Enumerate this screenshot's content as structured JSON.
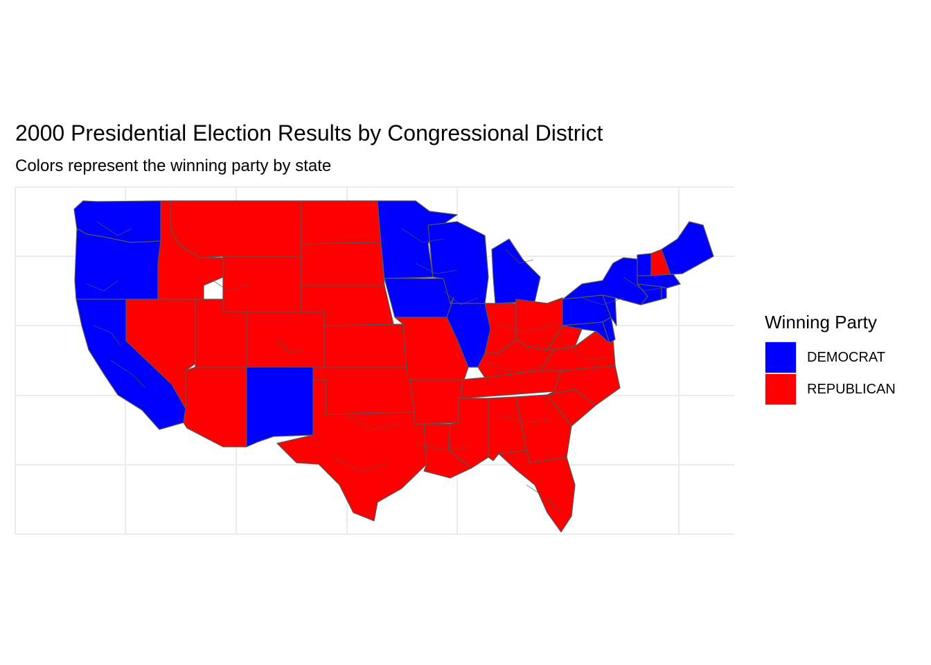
{
  "title": "2000 Presidential Election Results by Congressional District",
  "subtitle": "Colors represent the winning party by state",
  "legend": {
    "title": "Winning Party",
    "items": [
      {
        "label": "DEMOCRAT",
        "color": "#0000FF"
      },
      {
        "label": "REPUBLICAN",
        "color": "#FF0000"
      }
    ]
  },
  "colors": {
    "democrat": "#0000FF",
    "republican": "#FF0000",
    "border": "#555555",
    "grid": "#EBEBEB",
    "background": "#FFFFFF"
  },
  "states": [
    {
      "name": "Washington",
      "party": "DEMOCRAT"
    },
    {
      "name": "Oregon",
      "party": "DEMOCRAT"
    },
    {
      "name": "California",
      "party": "DEMOCRAT"
    },
    {
      "name": "Nevada",
      "party": "REPUBLICAN"
    },
    {
      "name": "Idaho",
      "party": "REPUBLICAN"
    },
    {
      "name": "Montana",
      "party": "REPUBLICAN"
    },
    {
      "name": "Wyoming",
      "party": "REPUBLICAN"
    },
    {
      "name": "Utah",
      "party": "REPUBLICAN"
    },
    {
      "name": "Arizona",
      "party": "REPUBLICAN"
    },
    {
      "name": "Colorado",
      "party": "REPUBLICAN"
    },
    {
      "name": "New Mexico",
      "party": "DEMOCRAT"
    },
    {
      "name": "North Dakota",
      "party": "REPUBLICAN"
    },
    {
      "name": "South Dakota",
      "party": "REPUBLICAN"
    },
    {
      "name": "Nebraska",
      "party": "REPUBLICAN"
    },
    {
      "name": "Kansas",
      "party": "REPUBLICAN"
    },
    {
      "name": "Oklahoma",
      "party": "REPUBLICAN"
    },
    {
      "name": "Texas",
      "party": "REPUBLICAN"
    },
    {
      "name": "Minnesota",
      "party": "DEMOCRAT"
    },
    {
      "name": "Iowa",
      "party": "DEMOCRAT"
    },
    {
      "name": "Missouri",
      "party": "REPUBLICAN"
    },
    {
      "name": "Arkansas",
      "party": "REPUBLICAN"
    },
    {
      "name": "Louisiana",
      "party": "REPUBLICAN"
    },
    {
      "name": "Wisconsin",
      "party": "DEMOCRAT"
    },
    {
      "name": "Illinois",
      "party": "DEMOCRAT"
    },
    {
      "name": "Michigan",
      "party": "DEMOCRAT"
    },
    {
      "name": "Indiana",
      "party": "REPUBLICAN"
    },
    {
      "name": "Ohio",
      "party": "REPUBLICAN"
    },
    {
      "name": "Kentucky",
      "party": "REPUBLICAN"
    },
    {
      "name": "Tennessee",
      "party": "REPUBLICAN"
    },
    {
      "name": "Mississippi",
      "party": "REPUBLICAN"
    },
    {
      "name": "Alabama",
      "party": "REPUBLICAN"
    },
    {
      "name": "Georgia",
      "party": "REPUBLICAN"
    },
    {
      "name": "Florida",
      "party": "REPUBLICAN"
    },
    {
      "name": "South Carolina",
      "party": "REPUBLICAN"
    },
    {
      "name": "North Carolina",
      "party": "REPUBLICAN"
    },
    {
      "name": "Virginia",
      "party": "REPUBLICAN"
    },
    {
      "name": "West Virginia",
      "party": "REPUBLICAN"
    },
    {
      "name": "Pennsylvania",
      "party": "DEMOCRAT"
    },
    {
      "name": "Maryland",
      "party": "DEMOCRAT"
    },
    {
      "name": "Delaware",
      "party": "DEMOCRAT"
    },
    {
      "name": "New Jersey",
      "party": "DEMOCRAT"
    },
    {
      "name": "New York",
      "party": "DEMOCRAT"
    },
    {
      "name": "Connecticut",
      "party": "DEMOCRAT"
    },
    {
      "name": "Rhode Island",
      "party": "DEMOCRAT"
    },
    {
      "name": "Massachusetts",
      "party": "DEMOCRAT"
    },
    {
      "name": "Vermont",
      "party": "DEMOCRAT"
    },
    {
      "name": "New Hampshire",
      "party": "REPUBLICAN"
    },
    {
      "name": "Maine",
      "party": "DEMOCRAT"
    }
  ]
}
